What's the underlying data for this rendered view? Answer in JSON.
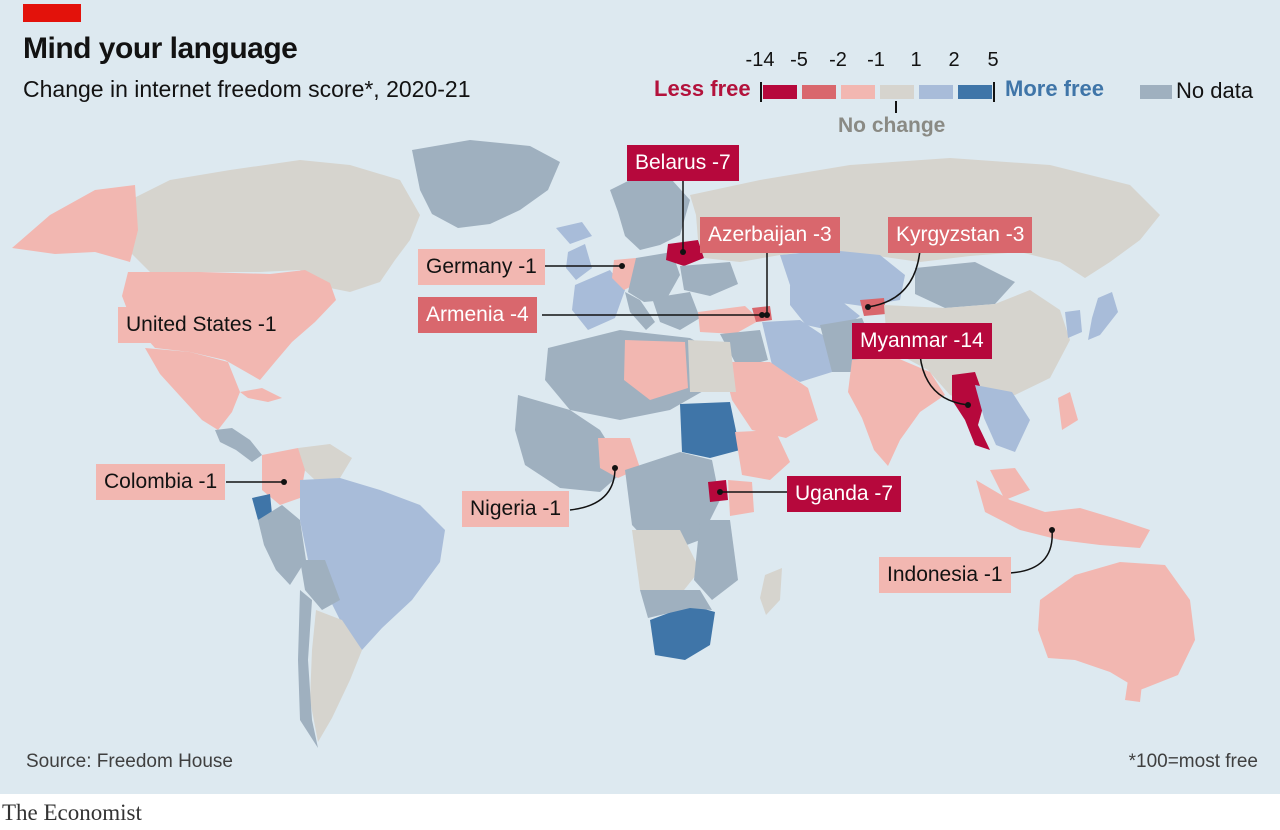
{
  "title": "Mind your language",
  "subtitle": "Change in internet freedom score*, 2020-21",
  "source": "Source: Freedom House",
  "footnote": "*100=most free",
  "brand": "The Economist",
  "legend": {
    "ticks": [
      "-14",
      "-5",
      "-2",
      "-1",
      "1",
      "2",
      "5"
    ],
    "less_free": "Less free",
    "more_free": "More free",
    "no_change": "No change",
    "no_data": "No data",
    "colors": {
      "minus14": "#b6083c",
      "minus5": "#d9676d",
      "minus2": "#f2b7b1",
      "no_change": "#d6d4ce",
      "plus2": "#a8bcd9",
      "plus5": "#3f75a8",
      "no_data": "#9fb0bf"
    }
  },
  "labels": {
    "belarus": "Belarus -7",
    "azerbaijan": "Azerbaijan -3",
    "kyrgyzstan": "Kyrgyzstan -3",
    "germany": "Germany -1",
    "armenia": "Armenia -4",
    "united_states": "United States -1",
    "myanmar": "Myanmar -14",
    "colombia": "Colombia -1",
    "nigeria": "Nigeria -1",
    "uganda": "Uganda -7",
    "indonesia": "Indonesia -1"
  }
}
